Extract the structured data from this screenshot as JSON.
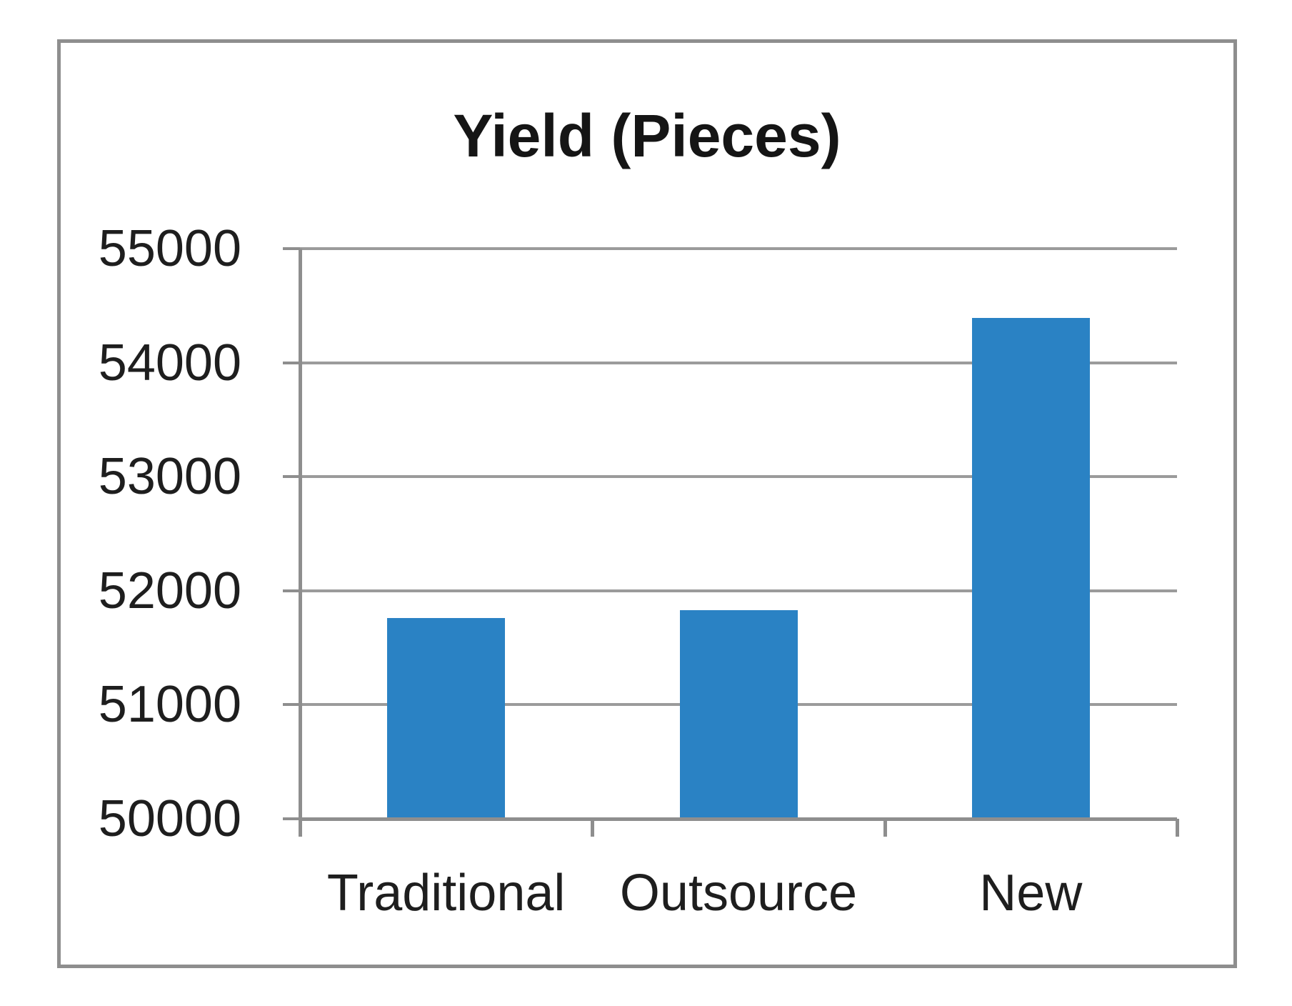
{
  "chart_data": {
    "type": "bar",
    "title": "Yield (Pieces)",
    "categories": [
      "Traditional",
      "Outsource",
      "New"
    ],
    "values": [
      51760,
      51830,
      54390
    ],
    "xlabel": "",
    "ylabel": "",
    "ylim": [
      50000,
      55000
    ],
    "ytick_step": 1000,
    "yticks": [
      50000,
      51000,
      52000,
      53000,
      54000,
      55000
    ],
    "ytick_labels": [
      "50000",
      "51000",
      "52000",
      "53000",
      "54000",
      "55000"
    ],
    "grid": "horizontal-only",
    "legend": "none",
    "data_labels": "none",
    "bar_color": "#2A82C4",
    "grid_color": "#9B9B9B",
    "axis_color": "#8E8E8E",
    "frame_color": "#8E8E8E",
    "text_color": "#1E1E1E",
    "title_color": "#151515",
    "background": "#FFFFFF"
  }
}
